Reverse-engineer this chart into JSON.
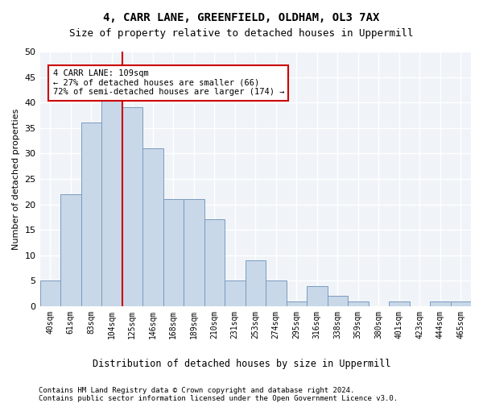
{
  "title": "4, CARR LANE, GREENFIELD, OLDHAM, OL3 7AX",
  "subtitle": "Size of property relative to detached houses in Uppermill",
  "xlabel": "Distribution of detached houses by size in Uppermill",
  "ylabel": "Number of detached properties",
  "bar_color": "#c8d8e8",
  "bar_edge_color": "#7a9abf",
  "categories": [
    "40sqm",
    "61sqm",
    "83sqm",
    "104sqm",
    "125sqm",
    "146sqm",
    "168sqm",
    "189sqm",
    "210sqm",
    "231sqm",
    "253sqm",
    "274sqm",
    "295sqm",
    "316sqm",
    "338sqm",
    "359sqm",
    "380sqm",
    "401sqm",
    "423sqm",
    "444sqm",
    "465sqm"
  ],
  "values": [
    5,
    22,
    36,
    42,
    39,
    31,
    21,
    21,
    17,
    5,
    9,
    5,
    1,
    4,
    2,
    1,
    0,
    1,
    0,
    1,
    1
  ],
  "ylim": [
    0,
    50
  ],
  "yticks": [
    0,
    5,
    10,
    15,
    20,
    25,
    30,
    35,
    40,
    45,
    50
  ],
  "property_line_x": 3.5,
  "property_label": "4 CARR LANE: 109sqm",
  "annotation_line1": "← 27% of detached houses are smaller (66)",
  "annotation_line2": "72% of semi-detached houses are larger (174) →",
  "annotation_box_color": "#ffffff",
  "annotation_box_edge_color": "#cc0000",
  "line_color": "#cc0000",
  "background_color": "#f0f4f8",
  "footer1": "Contains HM Land Registry data © Crown copyright and database right 2024.",
  "footer2": "Contains public sector information licensed under the Open Government Licence v3.0."
}
